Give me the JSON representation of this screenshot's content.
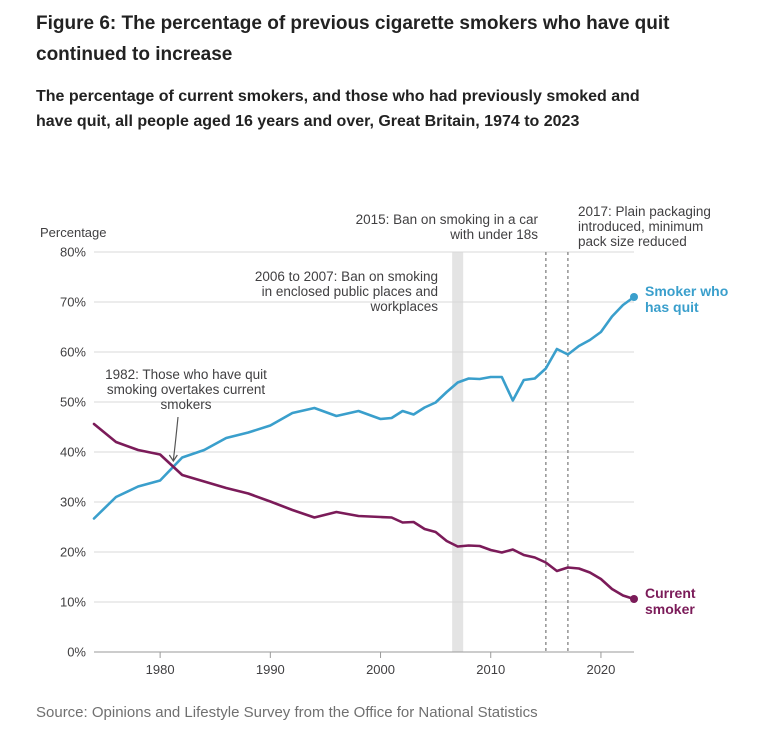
{
  "title": "Figure 6: The percentage of previous cigarette smokers who have quit continued to increase",
  "subtitle": "The percentage of current smokers, and those who had previously smoked and have quit, all people aged 16 years and over, Great Britain, 1974 to 2023",
  "source": "Source: Opinions and Lifestyle Survey from the Office for National Statistics",
  "colors": {
    "quit": "#3a9fcc",
    "current": "#7b1b59",
    "grid": "#d9d9d9",
    "band": "#e4e4e4",
    "text": "#414042"
  },
  "chart_data": {
    "type": "line",
    "ylabel": "Percentage",
    "xlim": [
      1974,
      2023
    ],
    "ylim": [
      0,
      80
    ],
    "y_ticks": [
      "0%",
      "10%",
      "20%",
      "30%",
      "40%",
      "50%",
      "60%",
      "70%",
      "80%"
    ],
    "x_ticks": [
      "1980",
      "1990",
      "2000",
      "2010",
      "2020"
    ],
    "grid": "horizontal",
    "legend": "direct labels at right end of lines",
    "series": [
      {
        "name": "Smoker who has quit",
        "name_lines": [
          "Smoker who",
          "has quit"
        ],
        "color": "#3a9fcc",
        "points": [
          [
            1974,
            26.7
          ],
          [
            1976,
            31.0
          ],
          [
            1978,
            33.1
          ],
          [
            1980,
            34.3
          ],
          [
            1982,
            38.9
          ],
          [
            1984,
            40.4
          ],
          [
            1986,
            42.8
          ],
          [
            1988,
            43.9
          ],
          [
            1990,
            45.3
          ],
          [
            1992,
            47.8
          ],
          [
            1994,
            48.8
          ],
          [
            1996,
            47.2
          ],
          [
            1998,
            48.2
          ],
          [
            2000,
            46.6
          ],
          [
            2001,
            46.8
          ],
          [
            2002,
            48.2
          ],
          [
            2003,
            47.5
          ],
          [
            2004,
            48.9
          ],
          [
            2005,
            49.9
          ],
          [
            2006,
            52.0
          ],
          [
            2007,
            53.9
          ],
          [
            2008,
            54.7
          ],
          [
            2009,
            54.6
          ],
          [
            2010,
            55.0
          ],
          [
            2011,
            55.0
          ],
          [
            2012,
            50.3
          ],
          [
            2013,
            54.4
          ],
          [
            2014,
            54.7
          ],
          [
            2015,
            56.7
          ],
          [
            2016,
            60.6
          ],
          [
            2017,
            59.5
          ],
          [
            2018,
            61.2
          ],
          [
            2019,
            62.4
          ],
          [
            2020,
            64.0
          ],
          [
            2021,
            67.1
          ],
          [
            2022,
            69.4
          ],
          [
            2023,
            71.0
          ]
        ]
      },
      {
        "name": "Current smoker",
        "name_lines": [
          "Current",
          "smoker"
        ],
        "color": "#7b1b59",
        "points": [
          [
            1974,
            45.6
          ],
          [
            1976,
            42.0
          ],
          [
            1978,
            40.4
          ],
          [
            1980,
            39.5
          ],
          [
            1982,
            35.4
          ],
          [
            1984,
            34.1
          ],
          [
            1986,
            32.8
          ],
          [
            1988,
            31.7
          ],
          [
            1990,
            30.1
          ],
          [
            1992,
            28.4
          ],
          [
            1994,
            26.9
          ],
          [
            1996,
            28.0
          ],
          [
            1998,
            27.2
          ],
          [
            2000,
            27.0
          ],
          [
            2001,
            26.9
          ],
          [
            2002,
            25.9
          ],
          [
            2003,
            26.0
          ],
          [
            2004,
            24.6
          ],
          [
            2005,
            24.0
          ],
          [
            2006,
            22.2
          ],
          [
            2007,
            21.1
          ],
          [
            2008,
            21.3
          ],
          [
            2009,
            21.2
          ],
          [
            2010,
            20.4
          ],
          [
            2011,
            19.9
          ],
          [
            2012,
            20.5
          ],
          [
            2013,
            19.4
          ],
          [
            2014,
            18.9
          ],
          [
            2015,
            17.9
          ],
          [
            2016,
            16.2
          ],
          [
            2017,
            16.9
          ],
          [
            2018,
            16.7
          ],
          [
            2019,
            15.9
          ],
          [
            2020,
            14.6
          ],
          [
            2021,
            12.6
          ],
          [
            2022,
            11.3
          ],
          [
            2023,
            10.6
          ]
        ]
      }
    ],
    "annotations": [
      {
        "id": "quit-overtakes",
        "lines": [
          "1982: Those who have quit",
          "smoking overtakes current",
          "smokers"
        ],
        "x": 1981.2,
        "y": 37.6
      },
      {
        "id": "ban-public-places",
        "lines": [
          "2006 to 2007: Ban on smoking",
          "in enclosed public places and",
          "workplaces"
        ],
        "x_from": 2006.5,
        "x_to": 2007.5,
        "style": "band"
      },
      {
        "id": "ban-car",
        "lines": [
          "2015: Ban on smoking in a car",
          "with under 18s"
        ],
        "x": 2015,
        "style": "dotted-line"
      },
      {
        "id": "plain-packaging",
        "lines": [
          "2017: Plain packaging",
          "introduced, minimum",
          "pack size reduced"
        ],
        "x": 2017,
        "style": "dotted-line"
      }
    ]
  }
}
